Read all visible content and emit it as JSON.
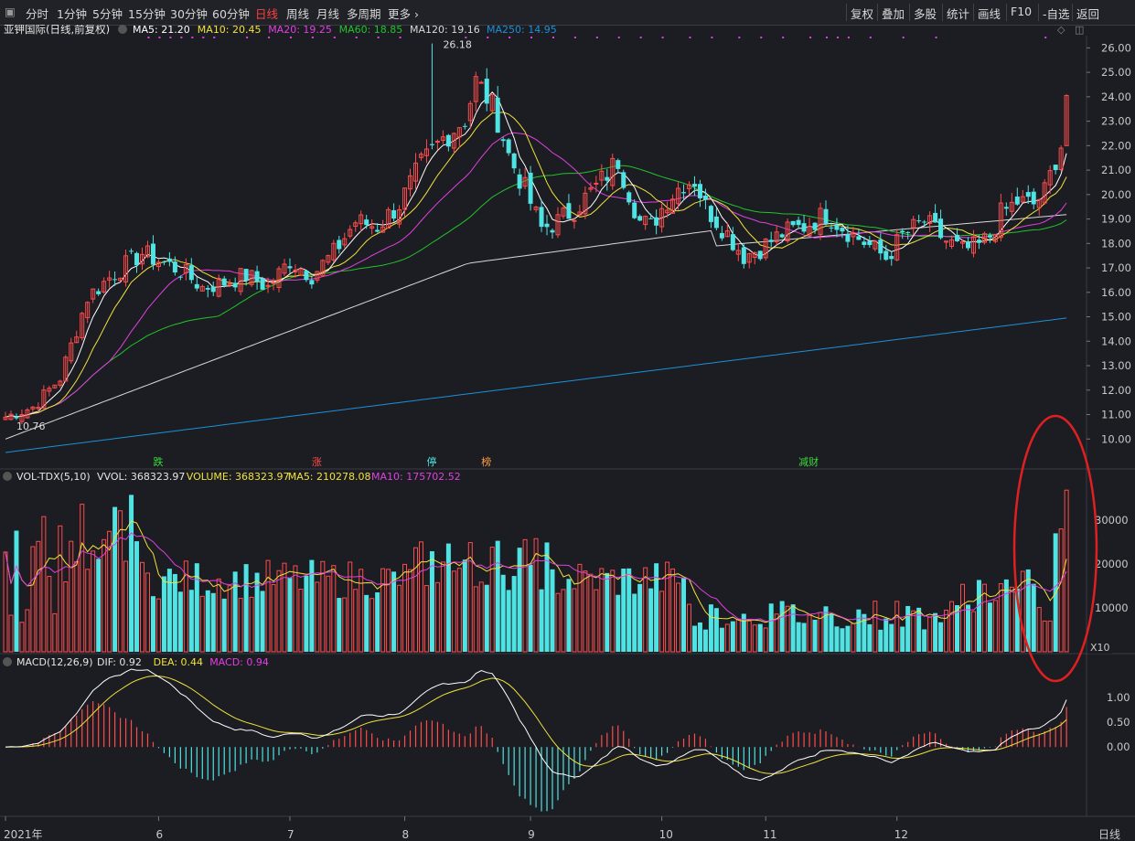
{
  "toolbar": {
    "period_tabs": [
      "分时",
      "1分钟",
      "5分钟",
      "15分钟",
      "30分钟",
      "60分钟",
      "日线",
      "周线",
      "月线",
      "多周期",
      "更多"
    ],
    "active_tab": "日线",
    "right_buttons": [
      "复权",
      "叠加",
      "多股",
      "统计",
      "画线",
      "F10",
      "-自选",
      "返回"
    ]
  },
  "colors": {
    "background": "#1c1d22",
    "up": "#ff4b4b",
    "down": "#4fe3e3",
    "ma5": "#ffffff",
    "ma10": "#f0e23c",
    "ma20": "#e040e0",
    "ma60": "#22c32b",
    "ma120": "#d8d8d8",
    "ma250": "#1e8fd8",
    "annotation_ellipse": "#e02020"
  },
  "chart_data": [
    {
      "type": "candlestick",
      "title": "亚钾国际(日线,前复权)",
      "indicators": [
        {
          "name": "MA5",
          "value": "21.20"
        },
        {
          "name": "MA10",
          "value": "20.45"
        },
        {
          "name": "MA20",
          "value": "19.25"
        },
        {
          "name": "MA60",
          "value": "18.85"
        },
        {
          "name": "MA120",
          "value": "19.16"
        },
        {
          "name": "MA250",
          "value": "14.95"
        }
      ],
      "ylim": [
        9.0,
        26.5
      ],
      "y_ticks": [
        "26.00",
        "25.00",
        "24.00",
        "23.00",
        "22.00",
        "21.00",
        "20.00",
        "19.00",
        "18.00",
        "17.00",
        "16.00",
        "15.00",
        "14.00",
        "13.00",
        "12.00",
        "11.00",
        "10.00"
      ],
      "price_path": [
        [
          0,
          10.9
        ],
        [
          5,
          11.3
        ],
        [
          10,
          12.5
        ],
        [
          15,
          15.8
        ],
        [
          20,
          16.8
        ],
        [
          25,
          17.6
        ],
        [
          28,
          17.3
        ],
        [
          32,
          16.9
        ],
        [
          36,
          16.2
        ],
        [
          40,
          16.4
        ],
        [
          44,
          16.7
        ],
        [
          48,
          16.2
        ],
        [
          52,
          17.3
        ],
        [
          56,
          16.7
        ],
        [
          60,
          17.6
        ],
        [
          64,
          18.9
        ],
        [
          68,
          18.7
        ],
        [
          72,
          19.6
        ],
        [
          76,
          21.2
        ],
        [
          80,
          22.3
        ],
        [
          84,
          23.1
        ],
        [
          86,
          24.6
        ],
        [
          88,
          24.0
        ],
        [
          90,
          23.1
        ],
        [
          92,
          21.6
        ],
        [
          95,
          20.2
        ],
        [
          98,
          18.6
        ],
        [
          101,
          18.9
        ],
        [
          104,
          19.4
        ],
        [
          108,
          20.3
        ],
        [
          112,
          21.4
        ],
        [
          114,
          20.1
        ],
        [
          116,
          18.9
        ],
        [
          118,
          18.7
        ],
        [
          121,
          19.8
        ],
        [
          124,
          20.5
        ],
        [
          126,
          20.6
        ],
        [
          128,
          19.5
        ],
        [
          132,
          18.4
        ],
        [
          135,
          17.5
        ],
        [
          138,
          17.8
        ],
        [
          142,
          18.4
        ],
        [
          146,
          18.7
        ],
        [
          150,
          19.2
        ],
        [
          154,
          18.5
        ],
        [
          158,
          17.9
        ],
        [
          161,
          17.4
        ],
        [
          164,
          18.3
        ],
        [
          168,
          18.9
        ],
        [
          172,
          18.1
        ],
        [
          175,
          17.7
        ],
        [
          178,
          17.9
        ],
        [
          180,
          18.3
        ],
        [
          182,
          19.2
        ],
        [
          185,
          19.7
        ],
        [
          188,
          19.6
        ],
        [
          190,
          20.1
        ],
        [
          192,
          21.4
        ],
        [
          193,
          22.1
        ],
        [
          194,
          23.9
        ]
      ],
      "annotations": {
        "high": "26.18",
        "low": "10.76"
      },
      "markers": [
        "跌",
        "涨",
        "停",
        "榜",
        "减财"
      ],
      "n_days": 195
    },
    {
      "type": "bar",
      "title": "VOL-TDX(5,10)",
      "indicators": [
        {
          "name": "VVOL",
          "value": "368323.97"
        },
        {
          "name": "VOLUME",
          "value": "368323.97"
        },
        {
          "name": "MA5",
          "value": "210278.08"
        },
        {
          "name": "MA10",
          "value": "175702.52"
        }
      ],
      "ylim": [
        0,
        40000
      ],
      "y_ticks": [
        "30000",
        "20000",
        "10000"
      ],
      "unit": "X10"
    },
    {
      "type": "line",
      "title": "MACD(12,26,9)",
      "indicators": [
        {
          "name": "DIF",
          "value": "0.92"
        },
        {
          "name": "DEA",
          "value": "0.44"
        },
        {
          "name": "MACD",
          "value": "0.94"
        }
      ],
      "ylim": [
        -1.4,
        1.85
      ],
      "y_ticks": [
        "1.00",
        "0.50",
        "0.00"
      ]
    }
  ],
  "x_axis": {
    "labels": [
      {
        "text": "2021年",
        "day": 0
      },
      {
        "text": "6",
        "day": 28
      },
      {
        "text": "7",
        "day": 52
      },
      {
        "text": "8",
        "day": 73
      },
      {
        "text": "9",
        "day": 96
      },
      {
        "text": "10",
        "day": 120
      },
      {
        "text": "11",
        "day": 139
      },
      {
        "text": "12",
        "day": 163
      }
    ],
    "period_label": "日线"
  }
}
